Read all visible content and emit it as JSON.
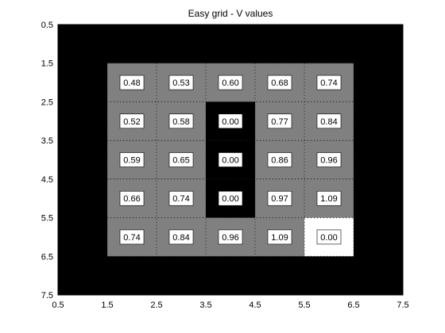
{
  "chart_data": {
    "type": "heatmap",
    "title": "Easy grid - V values",
    "xlabel": "",
    "ylabel": "",
    "xlim": [
      0.5,
      7.5
    ],
    "ylim": [
      0.5,
      7.5
    ],
    "y_direction": "down",
    "grid": "dotted",
    "xticks": [
      "0.5",
      "1.5",
      "2.5",
      "3.5",
      "4.5",
      "5.5",
      "6.5",
      "7.5"
    ],
    "yticks": [
      "0.5",
      "1.5",
      "2.5",
      "3.5",
      "4.5",
      "5.5",
      "6.5",
      "7.5"
    ],
    "colors": {
      "wall": "#000000",
      "state": "#808080",
      "goal": "#ffffff",
      "label_bg": "#ffffff",
      "grid": "#222222"
    },
    "cells": [
      {
        "x": 2,
        "y": 2,
        "type": "state",
        "label": "0.48"
      },
      {
        "x": 3,
        "y": 2,
        "type": "state",
        "label": "0.53"
      },
      {
        "x": 4,
        "y": 2,
        "type": "state",
        "label": "0.60"
      },
      {
        "x": 5,
        "y": 2,
        "type": "state",
        "label": "0.68"
      },
      {
        "x": 6,
        "y": 2,
        "type": "state",
        "label": "0.74"
      },
      {
        "x": 2,
        "y": 3,
        "type": "state",
        "label": "0.52"
      },
      {
        "x": 3,
        "y": 3,
        "type": "state",
        "label": "0.58"
      },
      {
        "x": 4,
        "y": 3,
        "type": "wall",
        "label": "0.00"
      },
      {
        "x": 5,
        "y": 3,
        "type": "state",
        "label": "0.77"
      },
      {
        "x": 6,
        "y": 3,
        "type": "state",
        "label": "0.84"
      },
      {
        "x": 2,
        "y": 4,
        "type": "state",
        "label": "0.59"
      },
      {
        "x": 3,
        "y": 4,
        "type": "state",
        "label": "0.65"
      },
      {
        "x": 4,
        "y": 4,
        "type": "wall",
        "label": "0.00"
      },
      {
        "x": 5,
        "y": 4,
        "type": "state",
        "label": "0.86"
      },
      {
        "x": 6,
        "y": 4,
        "type": "state",
        "label": "0.96"
      },
      {
        "x": 2,
        "y": 5,
        "type": "state",
        "label": "0.66"
      },
      {
        "x": 3,
        "y": 5,
        "type": "state",
        "label": "0.74"
      },
      {
        "x": 4,
        "y": 5,
        "type": "wall",
        "label": "0.00"
      },
      {
        "x": 5,
        "y": 5,
        "type": "state",
        "label": "0.97"
      },
      {
        "x": 6,
        "y": 5,
        "type": "state",
        "label": "1.09"
      },
      {
        "x": 2,
        "y": 6,
        "type": "state",
        "label": "0.74"
      },
      {
        "x": 3,
        "y": 6,
        "type": "state",
        "label": "0.84"
      },
      {
        "x": 4,
        "y": 6,
        "type": "state",
        "label": "0.96"
      },
      {
        "x": 5,
        "y": 6,
        "type": "state",
        "label": "1.09"
      },
      {
        "x": 6,
        "y": 6,
        "type": "goal",
        "label": "0.00"
      }
    ]
  }
}
